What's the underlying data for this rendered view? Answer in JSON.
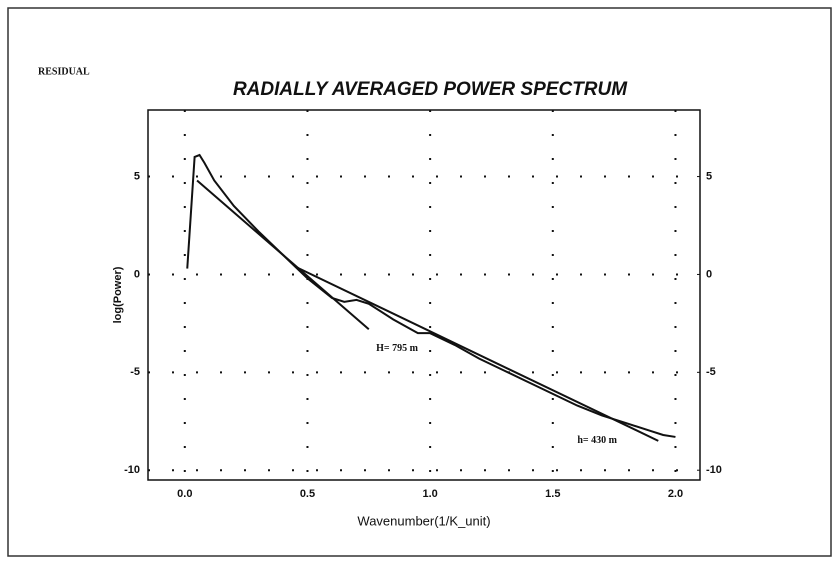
{
  "chart_data": {
    "type": "line",
    "corner_label": "RESIDUAL",
    "title": "RADIALLY AVERAGED POWER SPECTRUM",
    "x_label": "Wavenumber(1/K_unit)",
    "y_label": "log(Power)",
    "xlim": [
      -0.15,
      2.1
    ],
    "xticks": [
      {
        "value": 0,
        "label": "0.0"
      },
      0.5,
      {
        "value": 1,
        "label": "1.0"
      },
      1.5,
      {
        "value": 2,
        "label": "2.0"
      }
    ],
    "ylim": [
      -10.5,
      8.4
    ],
    "yticks": [
      5,
      0,
      -5,
      -10
    ],
    "y2lim": [
      -10.5,
      8.4
    ],
    "y2ticks": [
      5,
      0,
      -5,
      -10
    ],
    "grid": true,
    "series": [
      {
        "color": "#111111",
        "x": [
          0.01,
          0.04,
          0.06,
          0.08,
          0.12,
          0.2,
          0.3,
          0.4,
          0.5,
          0.6,
          0.65,
          0.7,
          0.75,
          0.85,
          0.95,
          1.0,
          1.1,
          1.2,
          1.3,
          1.4,
          1.5,
          1.6,
          1.7,
          1.8,
          1.9,
          1.95,
          2.0
        ],
        "values": [
          0.3,
          6.0,
          6.1,
          5.7,
          4.8,
          3.5,
          2.2,
          1.0,
          -0.2,
          -1.2,
          -1.4,
          -1.3,
          -1.5,
          -2.3,
          -3.0,
          -3.0,
          -3.6,
          -4.3,
          -4.9,
          -5.5,
          -6.1,
          -6.7,
          -7.2,
          -7.6,
          -8.0,
          -8.2,
          -8.3
        ]
      },
      {
        "color": "#111111",
        "x": [
          0.05,
          0.75
        ],
        "values": [
          4.8,
          -2.8
        ]
      },
      {
        "color": "#111111",
        "x": [
          0.45,
          1.93
        ],
        "values": [
          0.4,
          -8.5
        ]
      }
    ],
    "annotations": [
      {
        "text": "H= 795 m",
        "x": 0.78,
        "y": -3.8
      },
      {
        "text": "h= 430 m",
        "x": 1.6,
        "y": -8.5
      }
    ]
  }
}
